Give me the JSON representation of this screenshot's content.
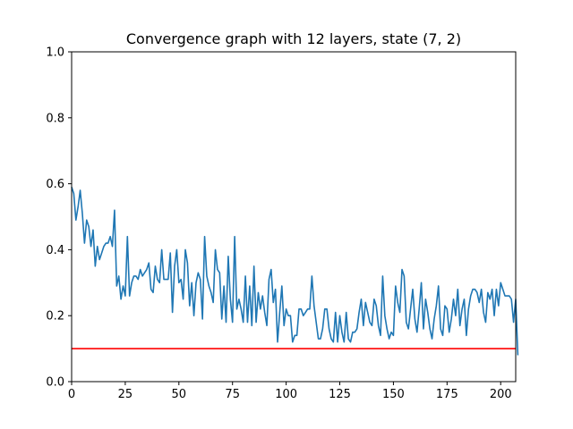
{
  "chart_data": {
    "type": "line",
    "title": "Convergence graph with 12 layers, state (7, 2)",
    "xlabel": "",
    "ylabel": "",
    "xlim": [
      0,
      207
    ],
    "ylim": [
      0.0,
      1.0
    ],
    "x_ticks": [
      0,
      25,
      50,
      75,
      100,
      125,
      150,
      175,
      200
    ],
    "y_ticks": [
      0.0,
      0.2,
      0.4,
      0.6,
      0.8,
      1.0
    ],
    "x_tick_labels": [
      "0",
      "25",
      "50",
      "75",
      "100",
      "125",
      "150",
      "175",
      "200"
    ],
    "y_tick_labels": [
      "0.0",
      "0.2",
      "0.4",
      "0.6",
      "0.8",
      "1.0"
    ],
    "grid": false,
    "legend": "none",
    "series": [
      {
        "color": "#1f77b4",
        "y": [
          0.59,
          0.57,
          0.49,
          0.53,
          0.58,
          0.51,
          0.42,
          0.49,
          0.47,
          0.41,
          0.46,
          0.35,
          0.41,
          0.37,
          0.39,
          0.41,
          0.42,
          0.42,
          0.44,
          0.41,
          0.52,
          0.29,
          0.32,
          0.25,
          0.29,
          0.26,
          0.44,
          0.26,
          0.3,
          0.32,
          0.32,
          0.31,
          0.34,
          0.32,
          0.33,
          0.34,
          0.36,
          0.28,
          0.27,
          0.35,
          0.31,
          0.3,
          0.4,
          0.31,
          0.31,
          0.31,
          0.39,
          0.21,
          0.35,
          0.4,
          0.3,
          0.31,
          0.25,
          0.4,
          0.36,
          0.23,
          0.3,
          0.2,
          0.3,
          0.33,
          0.31,
          0.19,
          0.44,
          0.32,
          0.29,
          0.27,
          0.24,
          0.4,
          0.34,
          0.33,
          0.19,
          0.29,
          0.18,
          0.38,
          0.25,
          0.18,
          0.44,
          0.22,
          0.25,
          0.22,
          0.18,
          0.32,
          0.18,
          0.29,
          0.17,
          0.35,
          0.18,
          0.27,
          0.22,
          0.26,
          0.21,
          0.17,
          0.31,
          0.34,
          0.24,
          0.28,
          0.12,
          0.21,
          0.29,
          0.17,
          0.22,
          0.2,
          0.2,
          0.12,
          0.14,
          0.14,
          0.22,
          0.22,
          0.2,
          0.21,
          0.22,
          0.22,
          0.32,
          0.23,
          0.18,
          0.13,
          0.13,
          0.16,
          0.22,
          0.22,
          0.16,
          0.13,
          0.12,
          0.21,
          0.12,
          0.2,
          0.15,
          0.12,
          0.21,
          0.13,
          0.12,
          0.15,
          0.15,
          0.16,
          0.21,
          0.25,
          0.17,
          0.24,
          0.21,
          0.18,
          0.17,
          0.25,
          0.23,
          0.17,
          0.14,
          0.32,
          0.2,
          0.16,
          0.13,
          0.15,
          0.14,
          0.29,
          0.24,
          0.21,
          0.34,
          0.32,
          0.18,
          0.16,
          0.22,
          0.28,
          0.19,
          0.15,
          0.22,
          0.3,
          0.16,
          0.25,
          0.21,
          0.16,
          0.13,
          0.19,
          0.23,
          0.29,
          0.16,
          0.14,
          0.23,
          0.22,
          0.15,
          0.19,
          0.25,
          0.2,
          0.28,
          0.17,
          0.22,
          0.25,
          0.14,
          0.22,
          0.26,
          0.28,
          0.28,
          0.27,
          0.24,
          0.28,
          0.21,
          0.18,
          0.27,
          0.25,
          0.28,
          0.2,
          0.28,
          0.23,
          0.3,
          0.28,
          0.26,
          0.26,
          0.26,
          0.25,
          0.18,
          0.25,
          0.08
        ]
      }
    ],
    "reference_line": {
      "y": 0.1,
      "color": "#ff0000"
    }
  }
}
